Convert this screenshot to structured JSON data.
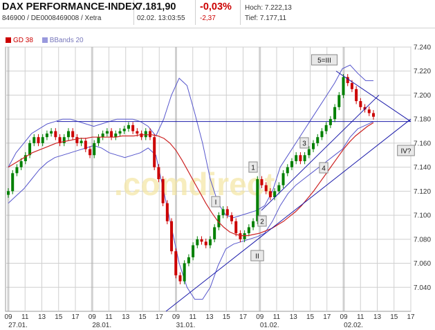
{
  "header": {
    "title": "DAX PERFORMANCE-INDEX",
    "identifiers": "846900 / DE0008469008 / Xetra",
    "price": "7.181,90",
    "timestamp": "02.02. 13:03:55",
    "change_pct": "-0,03%",
    "change_abs": "-2,37",
    "high": "Hoch: 7.222,13",
    "low": "Tief: 7.177,11"
  },
  "legend": [
    {
      "label": "GD 38",
      "color": "#cc0000"
    },
    {
      "label": "BBands 20",
      "color": "#9999dd"
    }
  ],
  "watermark": ".comdirect",
  "colors": {
    "up": "#008000",
    "down": "#cc0000",
    "band": "#5555cc",
    "ma": "#cc2222",
    "trend": "#1a1aaa",
    "grid": "#cfcfcf",
    "sessionLine": "#aaaaaa"
  },
  "chart_data": {
    "type": "candlestick",
    "ylim": [
      7020,
      7240
    ],
    "yticks": [
      "7.040",
      "7.060",
      "7.080",
      "7.100",
      "7.120",
      "7.140",
      "7.160",
      "7.180",
      "7.200",
      "7.220",
      "7.240"
    ],
    "ytick_values": [
      7040,
      7060,
      7080,
      7100,
      7120,
      7140,
      7160,
      7180,
      7200,
      7220,
      7240
    ],
    "x_hours": [
      "09",
      "11",
      "13",
      "15",
      "17",
      "09",
      "11",
      "13",
      "15",
      "17",
      "09",
      "11",
      "13",
      "15",
      "17",
      "09",
      "11",
      "13",
      "15",
      "17",
      "09",
      "11",
      "13",
      "15",
      "17"
    ],
    "x_dates": [
      "27.01.",
      "28.01.",
      "31.01.",
      "01.02.",
      "02.02."
    ],
    "x_date_tick_index": [
      0,
      5,
      10,
      15,
      20
    ],
    "close_series": [
      7120,
      7135,
      7140,
      7145,
      7150,
      7160,
      7165,
      7160,
      7165,
      7168,
      7170,
      7165,
      7160,
      7165,
      7170,
      7165,
      7160,
      7162,
      7155,
      7150,
      7160,
      7165,
      7168,
      7170,
      7165,
      7168,
      7170,
      7172,
      7175,
      7170,
      7168,
      7165,
      7170,
      7165,
      7140,
      7130,
      7110,
      7095,
      7070,
      7050,
      7045,
      7060,
      7065,
      7075,
      7080,
      7078,
      7075,
      7080,
      7090,
      7100,
      7105,
      7100,
      7095,
      7085,
      7080,
      7085,
      7090,
      7095,
      7130,
      7125,
      7120,
      7115,
      7120,
      7125,
      7135,
      7140,
      7145,
      7150,
      7145,
      7150,
      7155,
      7160,
      7165,
      7170,
      7175,
      7180,
      7190,
      7200,
      7215,
      7210,
      7205,
      7195,
      7190,
      7188,
      7185,
      7182
    ],
    "gd38": [
      7140,
      7143,
      7146,
      7149,
      7152,
      7154,
      7156,
      7158,
      7160,
      7161,
      7162,
      7163,
      7164,
      7164,
      7165,
      7165,
      7165,
      7165,
      7165,
      7166,
      7166,
      7166,
      7167,
      7167,
      7167,
      7166,
      7164,
      7160,
      7154,
      7146,
      7137,
      7128,
      7119,
      7110,
      7102,
      7095,
      7090,
      7086,
      7084,
      7083,
      7083,
      7084,
      7085,
      7087,
      7089,
      7092,
      7095,
      7099,
      7103,
      7108,
      7114,
      7120,
      7127,
      7134,
      7141,
      7148,
      7155,
      7161,
      7166,
      7170,
      7174,
      7177
    ],
    "bband_upper": [
      7140,
      7152,
      7160,
      7168,
      7172,
      7176,
      7178,
      7180,
      7180,
      7178,
      7176,
      7174,
      7176,
      7178,
      7180,
      7180,
      7180,
      7178,
      7174,
      7166,
      7180,
      7200,
      7214,
      7208,
      7185,
      7160,
      7130,
      7110,
      7100,
      7098,
      7100,
      7102,
      7104,
      7108,
      7120,
      7140,
      7150,
      7160,
      7170,
      7180,
      7190,
      7200,
      7210,
      7222,
      7225,
      7218,
      7212,
      7212
    ],
    "bband_lower": [
      7110,
      7116,
      7122,
      7130,
      7138,
      7144,
      7148,
      7150,
      7152,
      7154,
      7156,
      7158,
      7156,
      7152,
      7150,
      7148,
      7150,
      7152,
      7156,
      7150,
      7120,
      7090,
      7060,
      7040,
      7030,
      7030,
      7040,
      7058,
      7072,
      7076,
      7078,
      7080,
      7082,
      7085,
      7095,
      7108,
      7118,
      7125,
      7130,
      7135,
      7140,
      7145,
      7150,
      7155,
      7165,
      7172,
      7175,
      7178
    ],
    "horizontal_line": 7178,
    "annotations": [
      "1",
      "I",
      "2",
      "II",
      "3",
      "4",
      "5=III",
      "IV?"
    ]
  }
}
